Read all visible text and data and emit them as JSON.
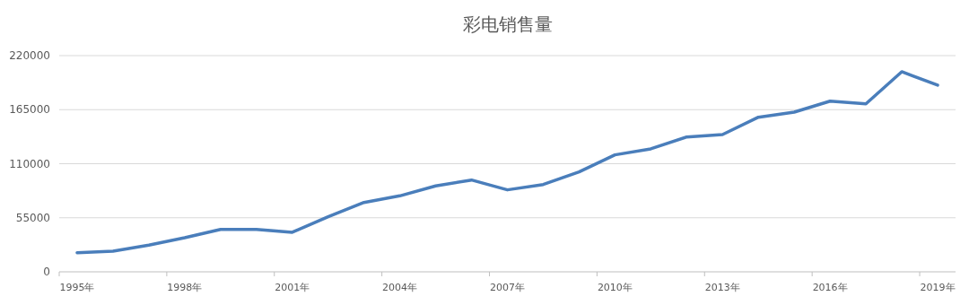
{
  "chart_data": {
    "type": "line",
    "title": "彩电销售量",
    "categories": [
      "1995年",
      null,
      null,
      "1998年",
      null,
      null,
      "2001年",
      null,
      null,
      "2004年",
      null,
      null,
      "2007年",
      null,
      null,
      "2010年",
      null,
      null,
      "2013年",
      null,
      null,
      "2016年",
      null,
      null,
      "2019年"
    ],
    "series": [
      {
        "color": "#4a7ebb",
        "values": [
          19500,
          21000,
          27100,
          34700,
          43200,
          43200,
          40200,
          56000,
          70600,
          77300,
          87400,
          93400,
          83400,
          88800,
          101600,
          119000,
          125100,
          137200,
          139700,
          157300,
          162500,
          173700,
          171000,
          203600,
          189900
        ]
      }
    ],
    "ylim": [
      0,
      220000
    ],
    "yticks": [
      0,
      55000,
      110000,
      165000,
      220000
    ],
    "grid": "y"
  }
}
